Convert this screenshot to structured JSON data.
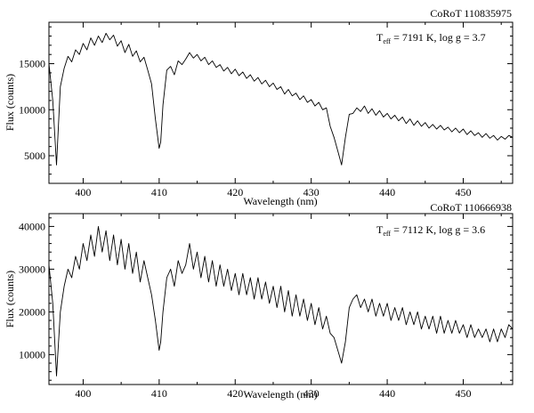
{
  "chart_data": [
    {
      "type": "line",
      "object_label": "CoRoT 110835975",
      "annotation": {
        "t_label": "T",
        "t_sub": "eff",
        "rest": " = 7191 K, log g = 3.7"
      },
      "xlabel": "Wavelength (nm)",
      "ylabel": "Flux (counts)",
      "xlim": [
        395.5,
        456.5
      ],
      "ylim": [
        2000,
        19500
      ],
      "xticks": [
        400,
        410,
        420,
        430,
        440,
        450
      ],
      "yticks": [
        5000,
        10000,
        15000
      ],
      "series": [
        {
          "x": [
            395.5,
            396.0,
            396.5,
            397.0,
            397.5,
            398.0,
            398.5,
            399.0,
            399.5,
            400.0,
            400.5,
            401.0,
            401.5,
            402.0,
            402.5,
            403.0,
            403.5,
            404.0,
            404.5,
            405.0,
            405.5,
            406.0,
            406.5,
            407.0,
            407.5,
            408.0,
            408.5,
            409.0,
            409.5,
            410.0,
            410.2,
            410.5,
            411.0,
            411.5,
            412.0,
            412.5,
            413.0,
            413.5,
            414.0,
            414.5,
            415.0,
            415.5,
            416.0,
            416.5,
            417.0,
            417.5,
            418.0,
            418.5,
            419.0,
            419.5,
            420.0,
            420.5,
            421.0,
            421.5,
            422.0,
            422.5,
            423.0,
            423.5,
            424.0,
            424.5,
            425.0,
            425.5,
            426.0,
            426.5,
            427.0,
            427.5,
            428.0,
            428.5,
            429.0,
            429.5,
            430.0,
            430.5,
            431.0,
            431.5,
            432.0,
            432.5,
            433.0,
            433.5,
            434.0,
            434.5,
            435.0,
            435.5,
            436.0,
            436.5,
            437.0,
            437.5,
            438.0,
            438.5,
            439.0,
            439.5,
            440.0,
            440.5,
            441.0,
            441.5,
            442.0,
            442.5,
            443.0,
            443.5,
            444.0,
            444.5,
            445.0,
            445.5,
            446.0,
            446.5,
            447.0,
            447.5,
            448.0,
            448.5,
            449.0,
            449.5,
            450.0,
            450.5,
            451.0,
            451.5,
            452.0,
            452.5,
            453.0,
            453.5,
            454.0,
            454.5,
            455.0,
            455.5,
            456.0,
            456.5
          ],
          "y": [
            15000,
            11000,
            4000,
            12500,
            14500,
            15800,
            15200,
            16500,
            16000,
            17200,
            16500,
            17800,
            17000,
            18000,
            17300,
            18300,
            17600,
            18100,
            16900,
            17500,
            16200,
            17100,
            15800,
            16400,
            15200,
            15700,
            14300,
            12800,
            9000,
            5800,
            6500,
            10500,
            14300,
            14700,
            13800,
            15300,
            14900,
            15500,
            16200,
            15600,
            16000,
            15300,
            15700,
            14900,
            15300,
            14600,
            14900,
            14200,
            14600,
            13900,
            14400,
            13700,
            14100,
            13400,
            13800,
            13100,
            13500,
            12800,
            13200,
            12500,
            12900,
            12200,
            12500,
            11700,
            12200,
            11500,
            11800,
            11100,
            11500,
            10800,
            11100,
            10400,
            10800,
            10000,
            10200,
            8200,
            7000,
            5500,
            4000,
            7000,
            9500,
            9600,
            10200,
            9800,
            10400,
            9600,
            10100,
            9400,
            9900,
            9200,
            9600,
            9000,
            9400,
            8800,
            9200,
            8500,
            9000,
            8300,
            8800,
            8200,
            8600,
            8000,
            8400,
            7900,
            8300,
            7800,
            8100,
            7600,
            8000,
            7500,
            7900,
            7300,
            7700,
            7200,
            7500,
            7000,
            7400,
            6900,
            7200,
            6700,
            7100,
            6800,
            7200,
            7000
          ]
        }
      ]
    },
    {
      "type": "line",
      "object_label": "CoRoT 110666938",
      "annotation": {
        "t_label": "T",
        "t_sub": "eff",
        "rest": " = 7112 K, log g = 3.6"
      },
      "xlabel": "Wavelength (nm)",
      "ylabel": "Flux (counts)",
      "xlim": [
        395.5,
        456.5
      ],
      "ylim": [
        3000,
        43000
      ],
      "xticks": [
        400,
        410,
        420,
        430,
        440,
        450
      ],
      "yticks": [
        10000,
        20000,
        30000,
        40000
      ],
      "series": [
        {
          "x": [
            395.5,
            396.0,
            396.5,
            397.0,
            397.5,
            398.0,
            398.5,
            399.0,
            399.5,
            400.0,
            400.5,
            401.0,
            401.5,
            402.0,
            402.5,
            403.0,
            403.5,
            404.0,
            404.5,
            405.0,
            405.5,
            406.0,
            406.5,
            407.0,
            407.5,
            408.0,
            408.5,
            409.0,
            409.5,
            410.0,
            410.2,
            410.5,
            411.0,
            411.5,
            412.0,
            412.5,
            413.0,
            413.5,
            414.0,
            414.5,
            415.0,
            415.5,
            416.0,
            416.5,
            417.0,
            417.5,
            418.0,
            418.5,
            419.0,
            419.5,
            420.0,
            420.5,
            421.0,
            421.5,
            422.0,
            422.5,
            423.0,
            423.5,
            424.0,
            424.5,
            425.0,
            425.5,
            426.0,
            426.5,
            427.0,
            427.5,
            428.0,
            428.5,
            429.0,
            429.5,
            430.0,
            430.5,
            431.0,
            431.5,
            432.0,
            432.5,
            433.0,
            433.5,
            434.0,
            434.5,
            435.0,
            435.5,
            436.0,
            436.5,
            437.0,
            437.5,
            438.0,
            438.5,
            439.0,
            439.5,
            440.0,
            440.5,
            441.0,
            441.5,
            442.0,
            442.5,
            443.0,
            443.5,
            444.0,
            444.5,
            445.0,
            445.5,
            446.0,
            446.5,
            447.0,
            447.5,
            448.0,
            448.5,
            449.0,
            449.5,
            450.0,
            450.5,
            451.0,
            451.5,
            452.0,
            452.5,
            453.0,
            453.5,
            454.0,
            454.5,
            455.0,
            455.5,
            456.0,
            456.5
          ],
          "y": [
            31000,
            22000,
            5000,
            20000,
            26000,
            30000,
            28000,
            33000,
            30000,
            36000,
            32000,
            38000,
            33000,
            40000,
            34000,
            39000,
            32000,
            38000,
            31000,
            37000,
            30000,
            36000,
            29000,
            34000,
            27000,
            32000,
            28000,
            24000,
            18000,
            11000,
            13000,
            20000,
            28000,
            30000,
            26000,
            32000,
            29000,
            31000,
            36000,
            30000,
            34000,
            28000,
            33000,
            27000,
            32000,
            26000,
            31000,
            26000,
            30000,
            25000,
            29000,
            24000,
            29000,
            24000,
            28000,
            23000,
            28000,
            23000,
            27000,
            22000,
            26000,
            21000,
            26000,
            20000,
            25000,
            19000,
            24000,
            19000,
            23000,
            18000,
            22000,
            17000,
            21000,
            16000,
            19000,
            15000,
            14000,
            11000,
            8000,
            13000,
            21000,
            23000,
            24000,
            21000,
            23000,
            20000,
            23000,
            19000,
            22000,
            19000,
            22000,
            18000,
            21000,
            18000,
            21000,
            17000,
            20000,
            17000,
            20000,
            16000,
            19000,
            16000,
            19000,
            15000,
            19000,
            15000,
            18000,
            15000,
            18000,
            15000,
            17000,
            14000,
            17000,
            14000,
            16000,
            14000,
            16000,
            13000,
            16000,
            13000,
            16000,
            14000,
            17000,
            16000
          ]
        }
      ]
    }
  ]
}
